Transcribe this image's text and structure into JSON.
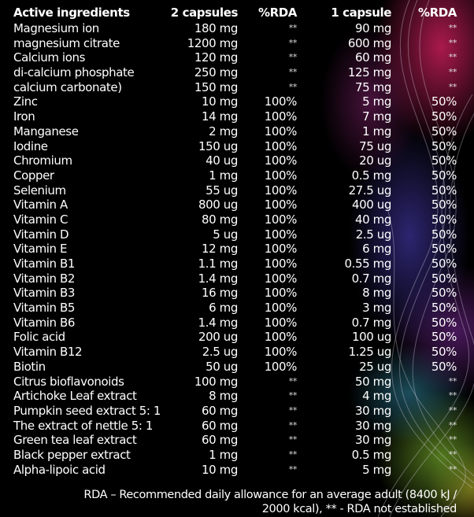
{
  "header": [
    "Active ingredients",
    "2 capsules",
    "%RDA",
    "1 capsule",
    "%RDA"
  ],
  "rows": [
    [
      "Magnesium ion",
      "180 mg",
      "**",
      "90 mg",
      "**"
    ],
    [
      "magnesium citrate",
      "1200 mg",
      "**",
      "600 mg",
      "**"
    ],
    [
      "Calcium ions",
      "120 mg",
      "**",
      "60 mg",
      "**"
    ],
    [
      "di-calcium phosphate",
      "250 mg",
      "**",
      "125 mg",
      "**"
    ],
    [
      "calcium carbonate)",
      "150 mg",
      "**",
      "75 mg",
      "**"
    ],
    [
      "Zinc",
      "10 mg",
      "100%",
      "5 mg",
      "50%"
    ],
    [
      "Iron",
      "14 mg",
      "100%",
      "7 mg",
      "50%"
    ],
    [
      "Manganese",
      "2 mg",
      "100%",
      "1 mg",
      "50%"
    ],
    [
      "Iodine",
      "150 ug",
      "100%",
      "75 ug",
      "50%"
    ],
    [
      "Chromium",
      "40 ug",
      "100%",
      "20 ug",
      "50%"
    ],
    [
      "Copper",
      "1 mg",
      "100%",
      "0.5 mg",
      "50%"
    ],
    [
      "Selenium",
      "55 ug",
      "100%",
      "27.5 ug",
      "50%"
    ],
    [
      "Vitamin A",
      "800 ug",
      "100%",
      "400 ug",
      "50%"
    ],
    [
      "Vitamin C",
      "80 mg",
      "100%",
      "40 mg",
      "50%"
    ],
    [
      "Vitamin D",
      "5 ug",
      "100%",
      "2.5 ug",
      "50%"
    ],
    [
      "Vitamin E",
      "12 mg",
      "100%",
      "6 mg",
      "50%"
    ],
    [
      "Vitamin B1",
      "1.1 mg",
      "100%",
      "0.55 mg",
      "50%"
    ],
    [
      "Vitamin B2",
      "1.4 mg",
      "100%",
      "0.7 mg",
      "50%"
    ],
    [
      "Vitamin B3",
      "16 mg",
      "100%",
      "8 mg",
      "50%"
    ],
    [
      "Vitamin B5",
      "6 mg",
      "100%",
      "3 mg",
      "50%"
    ],
    [
      "Vitamin B6",
      "1.4 mg",
      "100%",
      "0.7 mg",
      "50%"
    ],
    [
      "Folic acid",
      "200 ug",
      "100%",
      "100 ug",
      "50%"
    ],
    [
      "Vitamin B12",
      "2.5 ug",
      "100%",
      "1.25 ug",
      "50%"
    ],
    [
      "Biotin",
      "50 ug",
      "100%",
      "25 ug",
      "50%"
    ],
    [
      "Citrus bioflavonoids",
      "100 mg",
      "**",
      "50 mg",
      "**"
    ],
    [
      "Artichoke Leaf extract",
      "8 mg",
      "**",
      "4 mg",
      "**"
    ],
    [
      "Pumpkin seed extract 5: 1",
      "60 mg",
      "**",
      "30 mg",
      "**"
    ],
    [
      "The extract of nettle 5: 1",
      "60 mg",
      "**",
      "30 mg",
      "**"
    ],
    [
      "Green tea leaf extract",
      "60 mg",
      "**",
      "30 mg",
      "**"
    ],
    [
      "Black pepper extract",
      "1 mg",
      "**",
      "0.5 mg",
      "**"
    ],
    [
      "Alpha-lipoic acid",
      "10 mg",
      "**",
      "5 mg",
      "**"
    ]
  ],
  "footnote": {
    "line1": "RDA – Recommended daily allowance for an average adult (8400 kJ /",
    "line2": "2000 kcal), ** - RDA not established"
  },
  "colors": {
    "background": "#000000",
    "text": "#ffffff",
    "wave_top": "#c81e5a",
    "wave_middle": "#3c3296",
    "wave_bottom": "#6ea028"
  }
}
